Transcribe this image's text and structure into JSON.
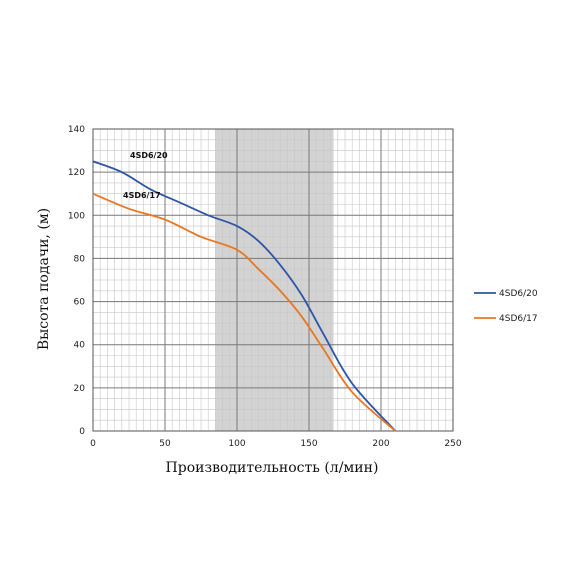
{
  "chart_data": {
    "type": "line",
    "xlabel": "Производительность (л/мин)",
    "ylabel": "Высота подачи, (м)",
    "xlim": [
      0,
      250
    ],
    "ylim": [
      0,
      140
    ],
    "xticks": [
      0,
      50,
      100,
      150,
      200,
      250
    ],
    "yticks": [
      0,
      20,
      40,
      60,
      80,
      100,
      120,
      140
    ],
    "grid": true,
    "minor_grid_step_x": 5,
    "minor_grid_step_y": 5,
    "shaded_range_x": [
      85,
      167
    ],
    "legend_position": "right",
    "series": [
      {
        "name": "4SD6/20",
        "color": "#2e56a6",
        "x": [
          0,
          20,
          40,
          60,
          80,
          100,
          115,
          130,
          145,
          160,
          180,
          210
        ],
        "y": [
          125,
          120,
          112,
          106,
          100,
          95,
          88,
          77,
          63,
          45,
          22,
          0
        ]
      },
      {
        "name": "4SD6/17",
        "color": "#e87722",
        "x": [
          0,
          25,
          50,
          75,
          100,
          115,
          130,
          145,
          160,
          180,
          210
        ],
        "y": [
          110,
          103,
          98,
          90,
          84,
          75,
          65,
          53,
          38,
          18,
          0
        ]
      }
    ],
    "annotations": [
      "4SD6/20",
      "4SD6/17"
    ]
  }
}
